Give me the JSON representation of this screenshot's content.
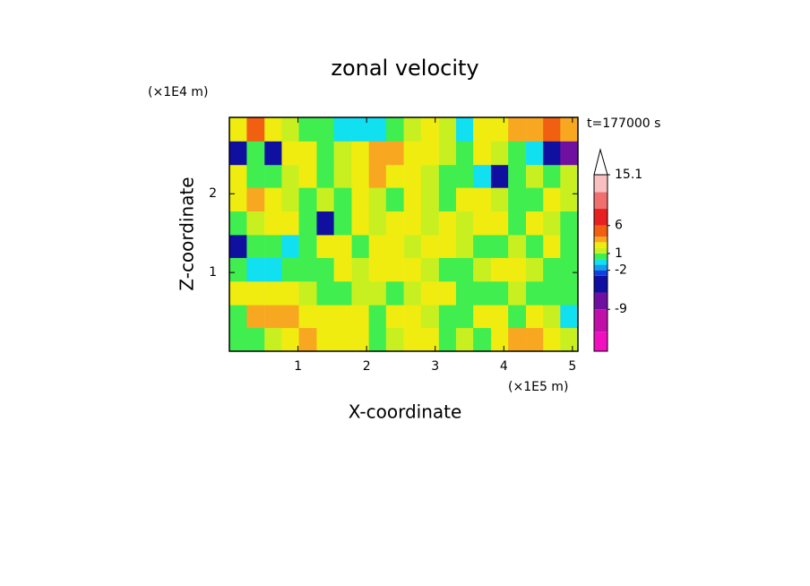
{
  "chart_data": {
    "type": "contour",
    "title": "zonal velocity",
    "time_label": "t=177000 s",
    "xlabel": "X-coordinate",
    "ylabel": "Z-coordinate",
    "x_unit": "(×1E5 m)",
    "y_unit": "(×1E4 m)",
    "xlim": [
      0,
      5.08
    ],
    "ylim": [
      0,
      2.97
    ],
    "xticks": [
      1,
      2,
      3,
      4,
      5
    ],
    "yticks": [
      1,
      2
    ],
    "x": [
      0.13,
      0.38,
      0.64,
      0.89,
      1.14,
      1.4,
      1.65,
      1.91,
      2.16,
      2.41,
      2.67,
      2.92,
      3.18,
      3.43,
      3.68,
      3.94,
      4.19,
      4.45,
      4.7,
      4.95
    ],
    "y": [
      0.15,
      0.45,
      0.74,
      1.04,
      1.34,
      1.63,
      1.93,
      2.23,
      2.52,
      2.82
    ],
    "z": [
      [
        0.5,
        0.5,
        1,
        2.5,
        3.5,
        2.5,
        2.5,
        2.5,
        0.5,
        1,
        2.5,
        2.5,
        0.5,
        1,
        0.5,
        2.5,
        3.5,
        3.5,
        2.5,
        1
      ],
      [
        0.5,
        3.5,
        3.5,
        3.5,
        2.5,
        2.5,
        2.5,
        2.5,
        0.5,
        2.5,
        2.5,
        1,
        0.5,
        0.5,
        2.5,
        2.5,
        0.5,
        2.5,
        1,
        -0.5
      ],
      [
        2.5,
        2.5,
        2.5,
        2.5,
        1,
        0.5,
        0.5,
        1,
        1,
        0.5,
        1,
        2.5,
        2.5,
        0.5,
        0.5,
        0.5,
        1,
        0.5,
        0.5,
        0.5
      ],
      [
        0.5,
        -0.5,
        -0.5,
        0.5,
        0.5,
        0.5,
        2.5,
        1,
        2.5,
        2.5,
        2.5,
        1,
        0.5,
        0.5,
        1,
        2.5,
        2.5,
        1,
        0.5,
        0.5
      ],
      [
        -4,
        0.5,
        0.5,
        -0.5,
        0.5,
        2.5,
        2.5,
        0.5,
        2.5,
        2.5,
        1,
        2.5,
        2.5,
        1,
        0.5,
        0.5,
        1,
        0.5,
        2.5,
        0.5
      ],
      [
        0.5,
        1,
        2.5,
        2.5,
        0.5,
        -4,
        0.5,
        2.5,
        1,
        2.5,
        2.5,
        1,
        2.5,
        1,
        2.5,
        2.5,
        0.5,
        2.5,
        1,
        0.5
      ],
      [
        2.5,
        3.5,
        2.5,
        1,
        0.5,
        1,
        0.5,
        2.5,
        1,
        0.5,
        2.5,
        1,
        0.5,
        2.5,
        2.5,
        1,
        0.5,
        0.5,
        2.5,
        1
      ],
      [
        2.5,
        0.5,
        0.5,
        1,
        2.5,
        0.5,
        1,
        2.5,
        3.5,
        2.5,
        2.5,
        1,
        0.5,
        0.5,
        -0.5,
        -4,
        0.5,
        1,
        0.5,
        1
      ],
      [
        -4,
        0.5,
        -4,
        2.5,
        2.5,
        0.5,
        1,
        2.5,
        3.5,
        3.5,
        2.5,
        2.5,
        1,
        0.5,
        2.5,
        1,
        0.5,
        -0.5,
        -5,
        -8
      ],
      [
        2.5,
        5,
        2.5,
        1,
        0.5,
        0.5,
        -0.5,
        -0.5,
        -0.5,
        0.5,
        1,
        2.5,
        1,
        -0.5,
        2.5,
        2.5,
        3.5,
        3.5,
        5,
        3.5
      ]
    ],
    "colorbar": {
      "bounds": [
        -16.5,
        -13,
        -9,
        -6,
        -3,
        -2,
        -1,
        0,
        1,
        2,
        3,
        4,
        6,
        9,
        12,
        15.1
      ],
      "colors": [
        "#f010c0",
        "#c010a8",
        "#7010a0",
        "#1010a0",
        "#1040e0",
        "#10a0f0",
        "#10e0f0",
        "#40ee50",
        "#c8f020",
        "#f0ec10",
        "#f8a820",
        "#f06010",
        "#e82020",
        "#f07070",
        "#f8c0c0"
      ],
      "ticks": [
        15.1,
        6,
        1,
        -2,
        -9
      ]
    }
  }
}
